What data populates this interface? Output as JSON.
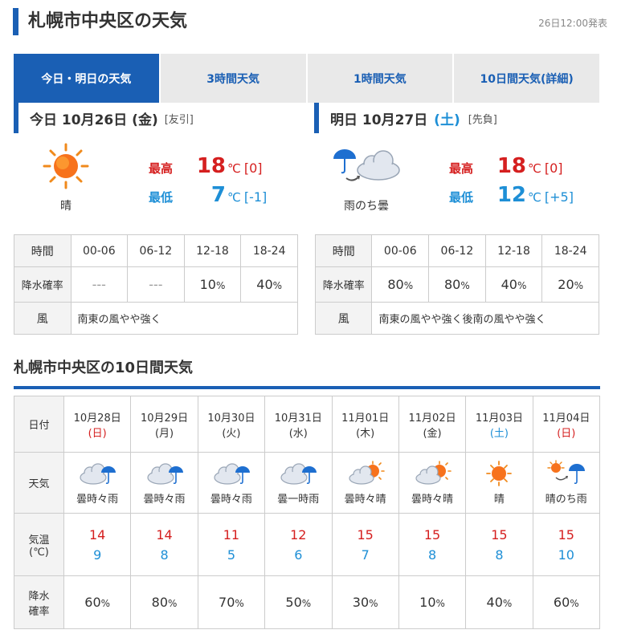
{
  "header": {
    "title": "札幌市中央区の天気",
    "announced": "26日12:00発表"
  },
  "tabs": [
    {
      "label": "今日・明日の天気",
      "active": true
    },
    {
      "label": "3時間天気",
      "active": false
    },
    {
      "label": "1時間天気",
      "active": false
    },
    {
      "label": "10日間天気(詳細)",
      "active": false
    }
  ],
  "today": {
    "label": "今日",
    "date": "10月26日",
    "weekday": "(金)",
    "rokuyo": "[友引]",
    "weather": "晴",
    "icon": "sun-icon",
    "high_label": "最高",
    "high": "18",
    "high_diff": "[0]",
    "low_label": "最低",
    "low": "7",
    "low_diff": "[-1]",
    "unit": "℃",
    "time_header": "時間",
    "rain_header": "降水確率",
    "wind_header": "風",
    "slots": [
      "00-06",
      "06-12",
      "12-18",
      "18-24"
    ],
    "rain": [
      "---",
      "---",
      "10",
      "40"
    ],
    "wind": "南東の風やや強く"
  },
  "tomorrow": {
    "label": "明日",
    "date": "10月27日",
    "weekday": "(土)",
    "rokuyo": "[先負]",
    "weather": "雨のち曇",
    "icon": "rain-then-cloud-icon",
    "high_label": "最高",
    "high": "18",
    "high_diff": "[0]",
    "low_label": "最低",
    "low": "12",
    "low_diff": "[+5]",
    "unit": "℃",
    "time_header": "時間",
    "rain_header": "降水確率",
    "wind_header": "風",
    "slots": [
      "00-06",
      "06-12",
      "12-18",
      "18-24"
    ],
    "rain": [
      "80",
      "80",
      "40",
      "20"
    ],
    "wind": "南東の風やや強く後南の風やや強く"
  },
  "percent": "%",
  "ten_day": {
    "title": "札幌市中央区の10日間天気",
    "date_header": "日付",
    "weather_header": "天気",
    "temp_header_1": "気温",
    "temp_header_2": "(℃)",
    "rain_header_1": "降水",
    "rain_header_2": "確率",
    "days": [
      {
        "date": "10月28日",
        "dow": "(日)",
        "dow_type": "sun",
        "weather": "曇時々雨",
        "icon": "cloud-rain-icon",
        "high": "14",
        "low": "9",
        "rain": "60"
      },
      {
        "date": "10月29日",
        "dow": "(月)",
        "dow_type": "",
        "weather": "曇時々雨",
        "icon": "cloud-rain-icon",
        "high": "14",
        "low": "8",
        "rain": "80"
      },
      {
        "date": "10月30日",
        "dow": "(火)",
        "dow_type": "",
        "weather": "曇時々雨",
        "icon": "cloud-rain-icon",
        "high": "11",
        "low": "5",
        "rain": "70"
      },
      {
        "date": "10月31日",
        "dow": "(水)",
        "dow_type": "",
        "weather": "曇一時雨",
        "icon": "cloud-rain-icon",
        "high": "12",
        "low": "6",
        "rain": "50"
      },
      {
        "date": "11月01日",
        "dow": "(木)",
        "dow_type": "",
        "weather": "曇時々晴",
        "icon": "cloud-sun-icon",
        "high": "15",
        "low": "7",
        "rain": "30"
      },
      {
        "date": "11月02日",
        "dow": "(金)",
        "dow_type": "",
        "weather": "曇時々晴",
        "icon": "cloud-sun-icon",
        "high": "15",
        "low": "8",
        "rain": "10"
      },
      {
        "date": "11月03日",
        "dow": "(土)",
        "dow_type": "sat",
        "weather": "晴",
        "icon": "sun-icon",
        "high": "15",
        "low": "8",
        "rain": "40"
      },
      {
        "date": "11月04日",
        "dow": "(日)",
        "dow_type": "sun",
        "weather": "晴のち雨",
        "icon": "sun-then-rain-icon",
        "high": "15",
        "low": "10",
        "rain": "60"
      }
    ]
  }
}
